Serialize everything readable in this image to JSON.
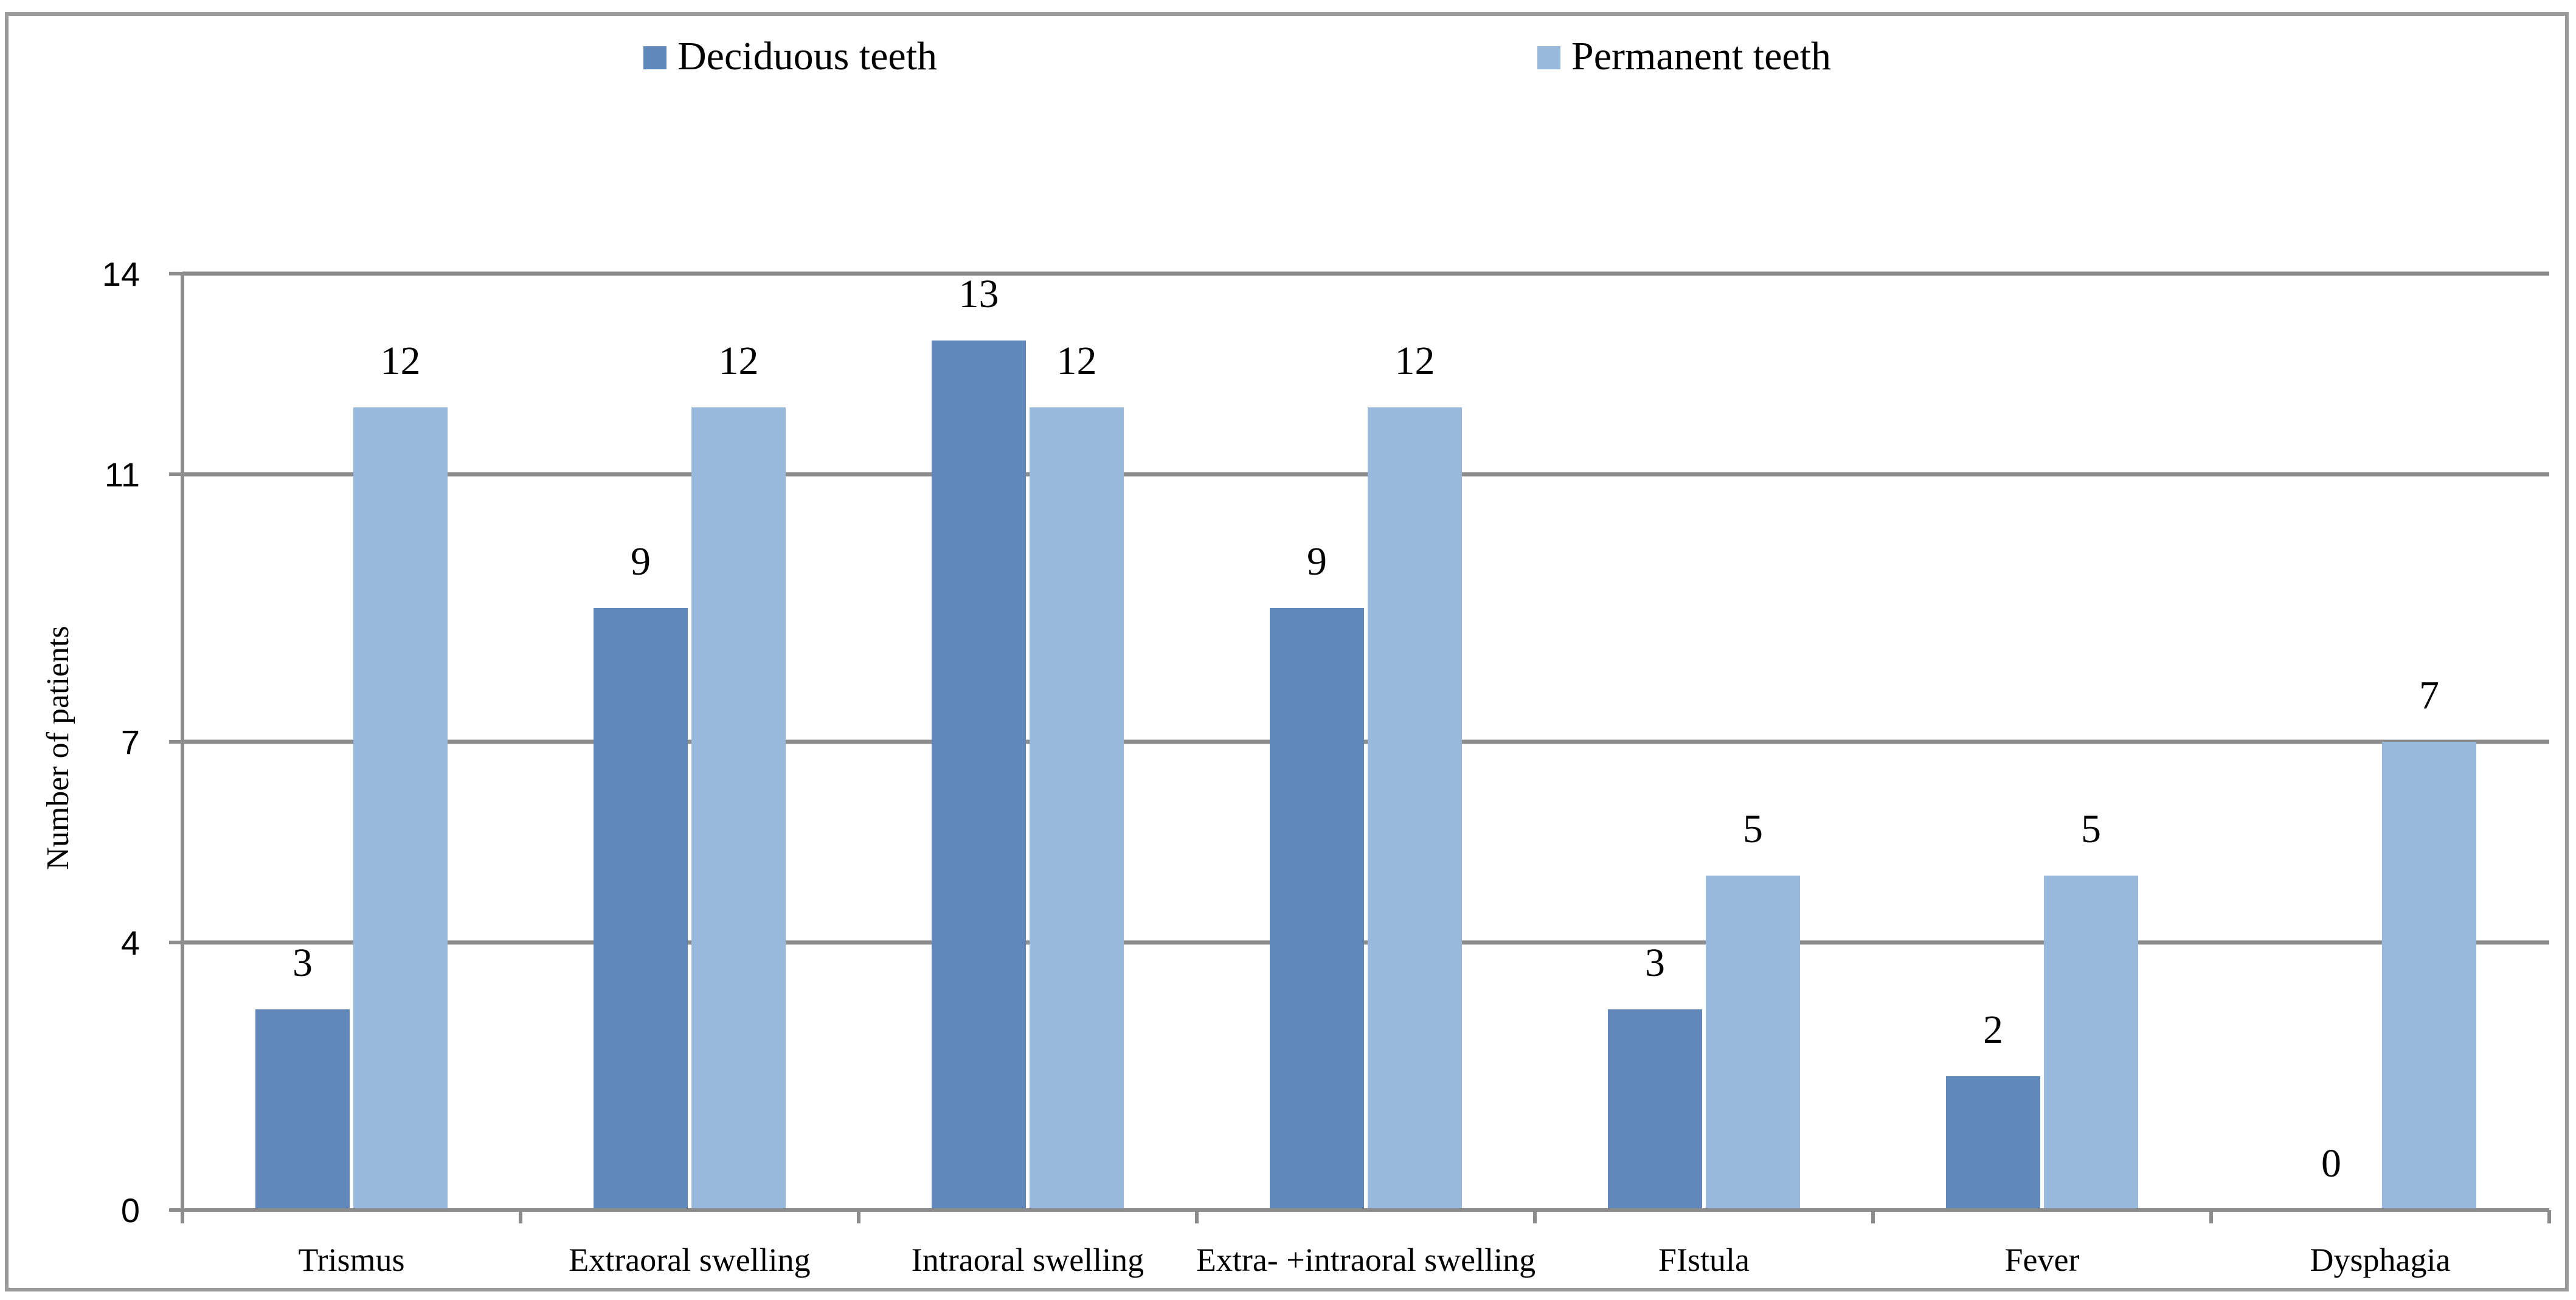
{
  "chart_data": {
    "type": "bar",
    "title": "",
    "xlabel": "",
    "ylabel": "Number of patients",
    "ylim": [
      0,
      14
    ],
    "yticks": [
      0,
      4,
      7,
      11,
      14
    ],
    "grid": true,
    "legend_position": "top",
    "categories": [
      "Trismus",
      "Extraoral swelling",
      "Intraoral swelling",
      "Extra- +intraoral swelling",
      "FIstula",
      "Fever",
      "Dysphagia"
    ],
    "series": [
      {
        "name": "Deciduous teeth",
        "color": "#5f87b9",
        "values": [
          3,
          9,
          13,
          9,
          3,
          2,
          0
        ]
      },
      {
        "name": "Permanent teeth",
        "color": "#98b9dc",
        "values": [
          12,
          12,
          12,
          12,
          5,
          5,
          7
        ]
      }
    ]
  }
}
